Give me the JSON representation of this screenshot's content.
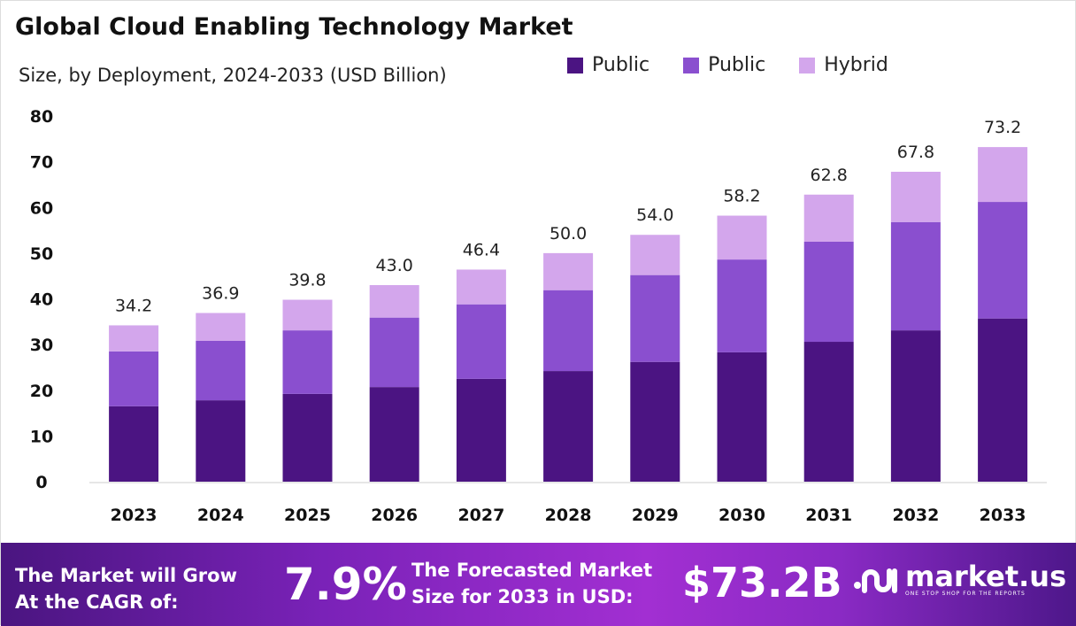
{
  "chart_data": {
    "type": "bar",
    "stacked": true,
    "title": "Global Cloud Enabling Technology Market",
    "subtitle": "Size, by Deployment, 2024-2033 (USD Billion)",
    "categories": [
      "2023",
      "2024",
      "2025",
      "2026",
      "2027",
      "2028",
      "2029",
      "2030",
      "2031",
      "2032",
      "2033"
    ],
    "series": [
      {
        "name": "Public",
        "color": "#4b1482",
        "values": [
          16.5,
          17.8,
          19.2,
          20.7,
          22.5,
          24.2,
          26.2,
          28.3,
          30.6,
          33.1,
          35.7
        ]
      },
      {
        "name": "Public",
        "color": "#8a4fcf",
        "values": [
          12.0,
          13.0,
          13.9,
          15.2,
          16.3,
          17.7,
          19.0,
          20.3,
          21.9,
          23.7,
          25.5
        ]
      },
      {
        "name": "Hybrid",
        "color": "#d3a6ec",
        "values": [
          5.7,
          6.1,
          6.7,
          7.1,
          7.6,
          8.1,
          8.8,
          9.6,
          10.3,
          11.0,
          12.0
        ]
      }
    ],
    "totals": [
      "34.2",
      "36.9",
      "39.8",
      "43.0",
      "46.4",
      "50.0",
      "54.0",
      "58.2",
      "62.8",
      "67.8",
      "73.2"
    ],
    "ylim": [
      0,
      80
    ],
    "yticks": [
      "0",
      "10",
      "20",
      "30",
      "40",
      "50",
      "60",
      "70",
      "80"
    ],
    "grid": false,
    "legend": "top-right"
  },
  "footer": {
    "cagr_label_1": "The Market will Grow",
    "cagr_label_2": "At the CAGR of:",
    "cagr_value": "7.9%",
    "forecast_label_1": "The Forecasted Market",
    "forecast_label_2": "Size for 2033 in USD:",
    "forecast_value": "$73.2B",
    "logo_text": "market.us",
    "logo_tagline": "ONE STOP SHOP FOR THE REPORTS"
  }
}
